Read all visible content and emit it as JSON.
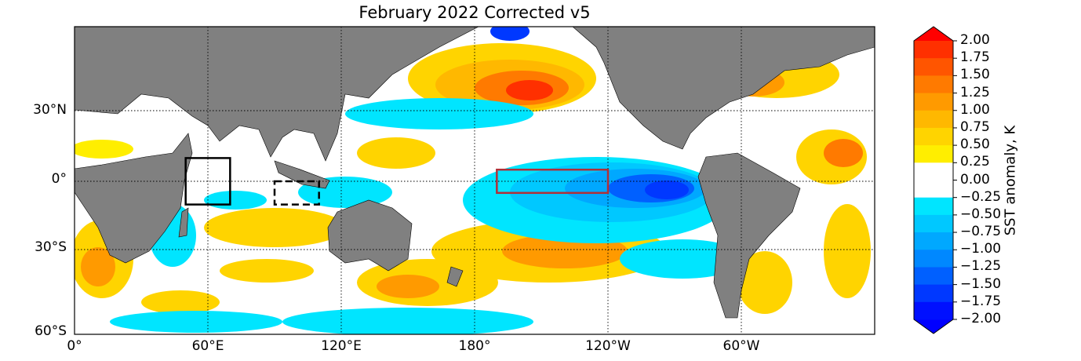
{
  "title": "February 2022 Corrected v5",
  "map": {
    "projection": "equirectangular, central meridian 180°",
    "lon_range": [
      0,
      360
    ],
    "lat_range": [
      -60,
      70
    ],
    "x_ticks": [
      {
        "lon": 0,
        "label": "0°"
      },
      {
        "lon": 60,
        "label": "60°E"
      },
      {
        "lon": 120,
        "label": "120°E"
      },
      {
        "lon": 180,
        "label": "180°"
      },
      {
        "lon": 240,
        "label": "120°W"
      },
      {
        "lon": 300,
        "label": "60°W"
      }
    ],
    "y_ticks": [
      {
        "lat": 30,
        "label": "30°N"
      },
      {
        "lat": 0,
        "label": "0°"
      },
      {
        "lat": -30,
        "label": "30°S"
      },
      {
        "lat": -60,
        "label": "60°S"
      }
    ],
    "gridlines": "dotted",
    "boxes": [
      {
        "name": "western Indian Ocean box",
        "lon": [
          50,
          70
        ],
        "lat": [
          -10,
          10
        ],
        "style": "solid",
        "color": "#000000"
      },
      {
        "name": "eastern Indian Ocean box",
        "lon": [
          90,
          110
        ],
        "lat": [
          -10,
          0
        ],
        "style": "dashed",
        "color": "#000000"
      },
      {
        "name": "Nino 3.4 box",
        "lon": [
          190,
          240
        ],
        "lat": [
          -5,
          5
        ],
        "style": "solid",
        "color": "#b03038"
      }
    ],
    "land_color": "#808080"
  },
  "colorbar": {
    "title": "SST anomaly, K",
    "labels": [
      "2.00",
      "1.75",
      "1.50",
      "1.25",
      "1.00",
      "0.75",
      "0.50",
      "0.25",
      "0.00",
      "−0.25",
      "−0.50",
      "−0.75",
      "−1.00",
      "−1.25",
      "−1.50",
      "−1.75",
      "−2.00"
    ],
    "levels": [
      2.0,
      1.75,
      1.5,
      1.25,
      1.0,
      0.75,
      0.5,
      0.25,
      0.0,
      -0.25,
      -0.5,
      -0.75,
      -1.0,
      -1.25,
      -1.5,
      -1.75,
      -2.0
    ],
    "colors": [
      "#ff0000",
      "#ff3000",
      "#ff5500",
      "#ff7a00",
      "#ff9a00",
      "#ffb800",
      "#ffd400",
      "#ffee00",
      "#ffffff",
      "#ffffff",
      "#00e5ff",
      "#00c8ff",
      "#00a8ff",
      "#0088ff",
      "#0060ff",
      "#0038ff",
      "#0010ff",
      "#0000ff"
    ],
    "extend": "both"
  }
}
